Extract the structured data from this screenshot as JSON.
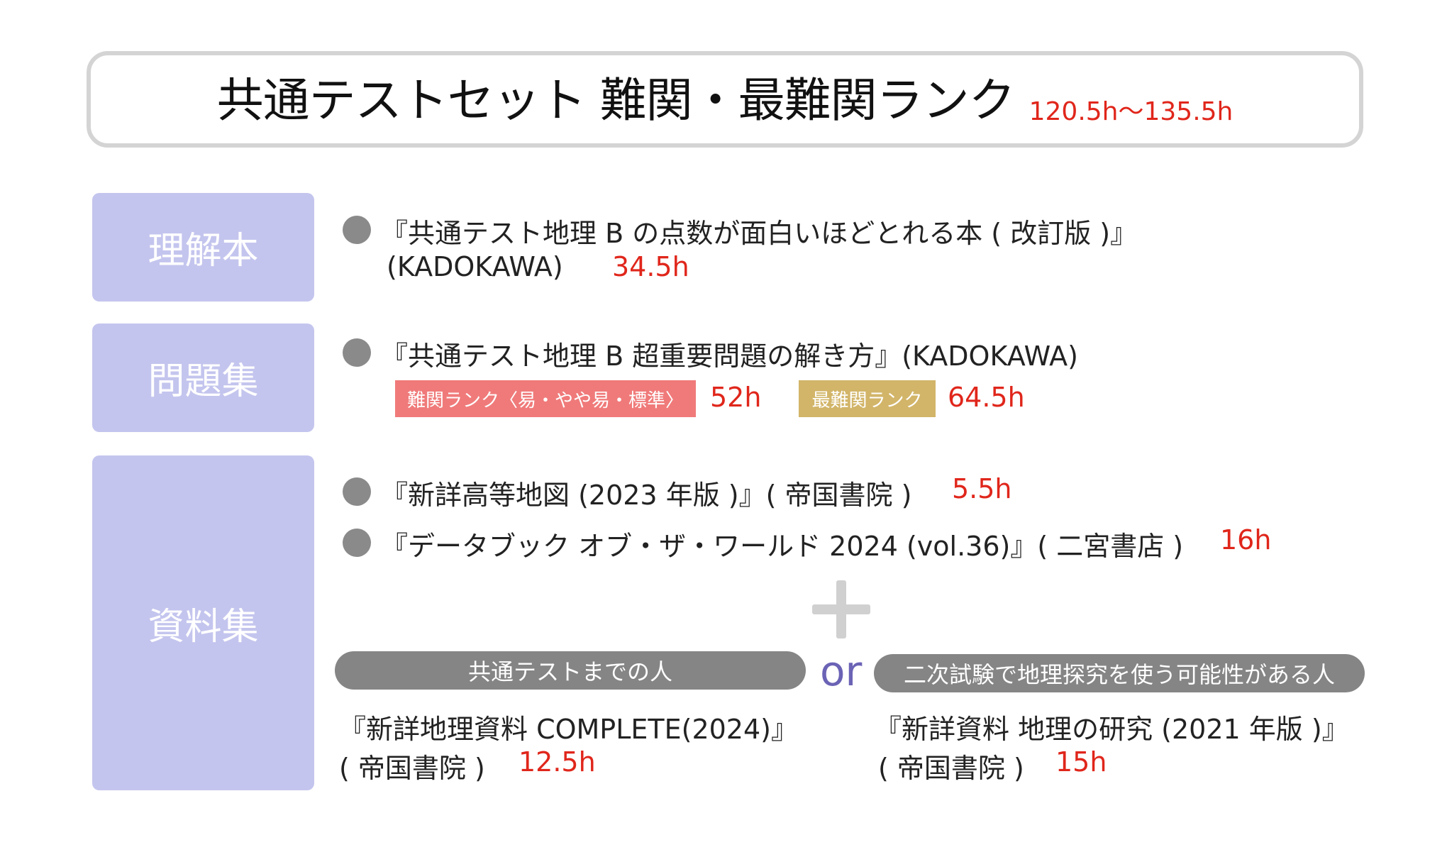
{
  "title": {
    "main": "共通テストセット 難関・最難関ランク",
    "hours": "120.5h〜135.5h"
  },
  "categories": {
    "understanding": "理解本",
    "problems": "問題集",
    "materials": "資料集"
  },
  "understanding_book": {
    "title": "『共通テスト地理 B の点数が面白いほどとれる本 ( 改訂版 )』",
    "publisher": "(KADOKAWA)",
    "hours": "34.5h"
  },
  "problem_book": {
    "title": "『共通テスト地理 B 超重要問題の解き方』(KADOKAWA)",
    "tag_difficult": "難関ランク〈易・やや易・標準〉",
    "hours_difficult": "52h",
    "tag_top": "最難関ランク",
    "hours_top": "64.5h"
  },
  "materials": [
    {
      "title": "『新詳高等地図 (2023 年版 )』( 帝国書院 )",
      "hours": "5.5h"
    },
    {
      "title": "『データブック オブ・ザ・ワールド 2024 (vol.36)』( 二宮書店 )",
      "hours": "16h"
    }
  ],
  "options": {
    "left_pill": "共通テストまでの人",
    "or": "or",
    "right_pill": "二次試験で地理探究を使う可能性がある人",
    "left_book_title": "『新詳地理資料 COMPLETE(2024)』",
    "left_book_publisher": "( 帝国書院 )",
    "left_book_hours": "12.5h",
    "right_book_title": "『新詳資料 地理の研究 (2021 年版 )』",
    "right_book_publisher": "( 帝国書院 )",
    "right_book_hours": "15h"
  },
  "colors": {
    "accent_red": "#e0261b",
    "category_bg": "#c4c5ee",
    "tag_difficult_bg": "#f07a7a",
    "tag_top_bg": "#d2b569",
    "pill_bg": "#858585",
    "or_color": "#6b63b5"
  }
}
